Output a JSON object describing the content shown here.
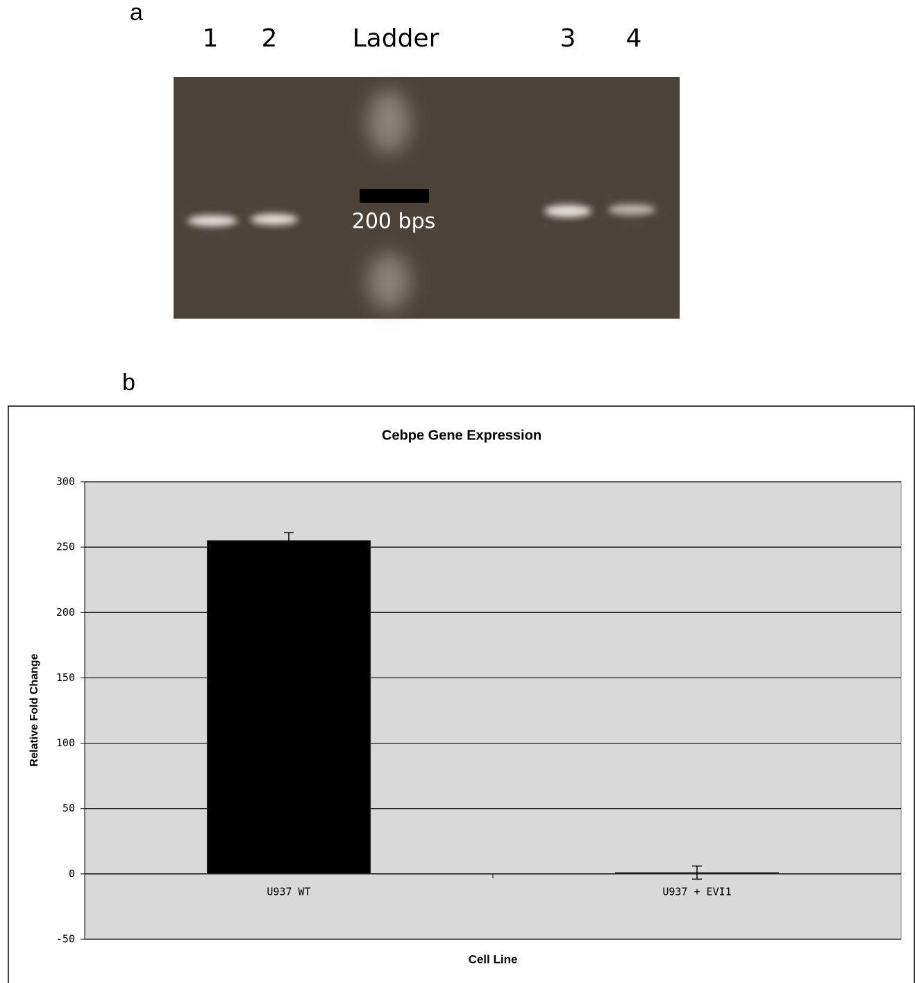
{
  "panel_a": {
    "label": "a",
    "lanes": [
      "1",
      "2",
      "Ladder",
      "3",
      "4"
    ],
    "marker": "200 bps"
  },
  "panel_b_label": "b",
  "chart_data": {
    "type": "bar",
    "title": "Cebpe Gene Expression",
    "x_label": "Cell Line",
    "y_label": "Relative Fold Change",
    "categories": [
      "U937 WT",
      "U937 + EVI1"
    ],
    "values": [
      255,
      1
    ],
    "errors": [
      6,
      5
    ],
    "color": "#000000",
    "background": "#d9d9d9",
    "ylim": [
      -50,
      300
    ],
    "yticks": [
      -50,
      0,
      50,
      100,
      150,
      200,
      250,
      300
    ],
    "grid": true
  }
}
